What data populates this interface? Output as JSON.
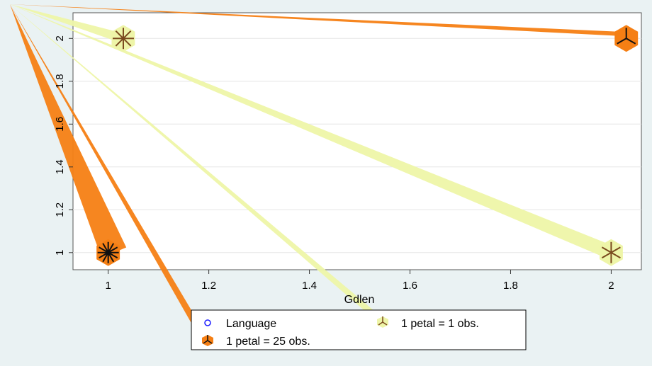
{
  "chart_data": {
    "type": "scatter",
    "subtype": "sunflower",
    "title": "",
    "xlabel": "Gdlen",
    "ylabel": "",
    "xlim": [
      0.93,
      2.06
    ],
    "ylim": [
      0.92,
      2.12
    ],
    "xticks": [
      "1",
      "1.2",
      "1.4",
      "1.6",
      "1.8",
      "2"
    ],
    "yticks": [
      "1",
      "1.2",
      "1.4",
      "1.6",
      "1.8",
      "2"
    ],
    "grid": true,
    "legend_position": "bottom",
    "legend": {
      "marker_series": "Language",
      "light_petal": "1 petal = 1 obs.",
      "dark_petal": "1 petal = 25 obs."
    },
    "colors": {
      "outer_background": "#eaf2f3",
      "plot_background": "#ffffff",
      "light_flower": "#eef5a8",
      "dark_flower": "#f57f14",
      "petal_line_light": "#7a4a1e",
      "petal_line_dark": "#111111",
      "marker": "#1a1aff"
    },
    "flowers": [
      {
        "x": 1.0,
        "y": 1.0,
        "kind": "dark",
        "petals": 12
      },
      {
        "x": 1.03,
        "y": 2.0,
        "kind": "light",
        "petals": 8
      },
      {
        "x": 2.0,
        "y": 1.0,
        "kind": "light",
        "petals": 6
      },
      {
        "x": 2.03,
        "y": 2.0,
        "kind": "dark",
        "petals": 3
      }
    ]
  }
}
